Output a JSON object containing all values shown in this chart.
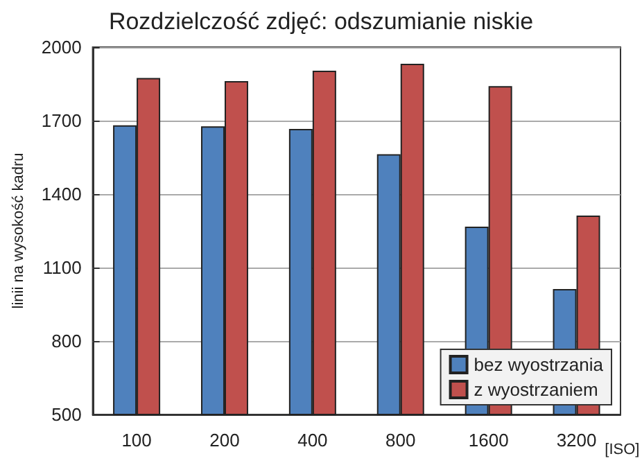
{
  "chart_data": {
    "type": "bar",
    "title": "Rozdzielczość zdjęć: odszumianie niskie",
    "xlabel": "[ISO]",
    "ylabel": "linii na wysokość kadru",
    "categories": [
      "100",
      "200",
      "400",
      "800",
      "1600",
      "3200"
    ],
    "series": [
      {
        "name": "bez wyostrzania",
        "color": "#4f81bd",
        "values": [
          1681,
          1677,
          1666,
          1563,
          1267,
          1012
        ]
      },
      {
        "name": "z wyostrzaniem",
        "color": "#c0504d",
        "values": [
          1874,
          1861,
          1904,
          1932,
          1841,
          1312
        ]
      }
    ],
    "ylim": [
      500,
      2000
    ],
    "yticks": [
      500,
      800,
      1100,
      1400,
      1700,
      2000
    ],
    "grid": "y",
    "legend": "bottom right"
  }
}
